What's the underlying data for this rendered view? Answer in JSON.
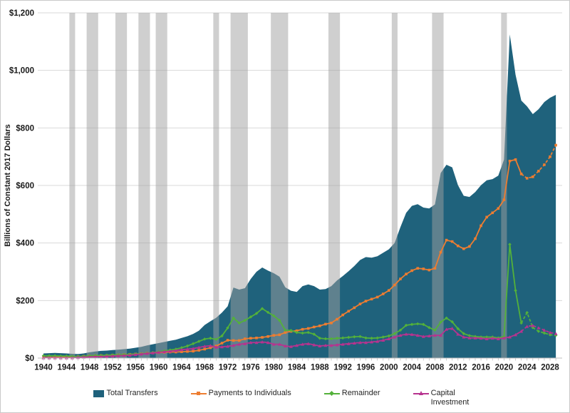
{
  "figure": {
    "ylabel": "Billions of Constant 2017 Dollars",
    "background_color": "#FFFFFF",
    "border_color": "#C9C9C9",
    "grid_color": "#D9D9D9",
    "axis_color": "#BFBFBF",
    "text_color": "#1A1A1A",
    "recession_band_color": "#A0A0A0",
    "recession_band_opacity": 0.5
  },
  "legend": [
    {
      "label": "Total Transfers",
      "type": "area",
      "marker": "none",
      "color": "#1F627C"
    },
    {
      "label": "Payments to Individuals",
      "type": "line",
      "marker": "square",
      "color": "#ED7D31"
    },
    {
      "label": "Remainder",
      "type": "line",
      "marker": "diamond",
      "color": "#53B13A"
    },
    {
      "label": "Capital Investment",
      "type": "line",
      "marker": "triangle",
      "color": "#B7338F"
    }
  ],
  "chart_data": {
    "type": "area+line",
    "title": "",
    "xlabel": "",
    "ylabel": "Billions of Constant 2017 Dollars",
    "year_start": 1940,
    "year_end": 2029,
    "ylim": [
      0,
      1200
    ],
    "grid": "horizontal",
    "legend_position": "bottom",
    "projection_start_year": 2023,
    "x_tick_years": [
      1940,
      1944,
      1948,
      1952,
      1956,
      1960,
      1964,
      1968,
      1972,
      1976,
      1980,
      1984,
      1988,
      1992,
      1996,
      2000,
      2004,
      2008,
      2012,
      2016,
      2020,
      2024,
      2028
    ],
    "y_ticks": [
      {
        "value": 0,
        "label": "$0"
      },
      {
        "value": 200,
        "label": "$200"
      },
      {
        "value": 400,
        "label": "$400"
      },
      {
        "value": 600,
        "label": "$600"
      },
      {
        "value": 800,
        "label": "$800"
      },
      {
        "value": 1000,
        "label": "$1,000"
      },
      {
        "value": 1200,
        "label": "$1,200"
      }
    ],
    "recessions": [
      [
        1945,
        1945
      ],
      [
        1948,
        1949
      ],
      [
        1953,
        1954
      ],
      [
        1957,
        1958
      ],
      [
        1960,
        1961
      ],
      [
        1970,
        1970
      ],
      [
        1973,
        1975
      ],
      [
        1980,
        1982
      ],
      [
        1990,
        1991
      ],
      [
        2001,
        2001
      ],
      [
        2008,
        2009
      ],
      [
        2020,
        2020
      ]
    ],
    "series": [
      {
        "name": "Total Transfers",
        "style": "area",
        "color": "#1F627C",
        "values": [
          16,
          17,
          18,
          17,
          16,
          15,
          14,
          16,
          20,
          23,
          25,
          26,
          28,
          29,
          31,
          33,
          36,
          39,
          44,
          48,
          52,
          56,
          60,
          64,
          70,
          76,
          84,
          95,
          115,
          128,
          140,
          158,
          180,
          245,
          238,
          243,
          275,
          300,
          315,
          304,
          295,
          283,
          246,
          234,
          230,
          250,
          256,
          250,
          238,
          240,
          250,
          270,
          285,
          302,
          320,
          341,
          351,
          349,
          354,
          366,
          378,
          400,
          455,
          505,
          529,
          535,
          523,
          520,
          534,
          643,
          672,
          663,
          601,
          564,
          560,
          577,
          601,
          618,
          622,
          634,
          690,
          1125,
          985,
          895,
          875,
          848,
          865,
          890,
          905,
          915
        ]
      },
      {
        "name": "Payments to Individuals",
        "style": "line",
        "marker": "square",
        "color": "#ED7D31",
        "values": [
          2,
          2,
          3,
          3,
          3,
          4,
          5,
          6,
          7,
          8,
          9,
          9,
          10,
          11,
          12,
          13,
          14,
          15,
          17,
          18,
          19,
          20,
          21,
          21,
          22,
          23,
          24,
          27,
          31,
          36,
          42,
          52,
          62,
          61,
          61,
          67,
          69,
          70,
          72,
          75,
          79,
          81,
          89,
          93,
          95,
          100,
          103,
          108,
          112,
          118,
          122,
          135,
          150,
          163,
          175,
          188,
          198,
          205,
          212,
          223,
          235,
          254,
          275,
          292,
          304,
          312,
          310,
          306,
          312,
          368,
          410,
          405,
          390,
          380,
          388,
          415,
          460,
          490,
          505,
          520,
          550,
          685,
          690,
          640,
          625,
          630,
          650,
          672,
          700,
          740
        ]
      },
      {
        "name": "Remainder",
        "style": "line",
        "marker": "diamond",
        "color": "#53B13A",
        "values": [
          8,
          8,
          8,
          7,
          7,
          6,
          5,
          6,
          8,
          9,
          9,
          10,
          11,
          11,
          12,
          13,
          14,
          15,
          17,
          19,
          22,
          25,
          28,
          31,
          36,
          42,
          50,
          58,
          66,
          69,
          65,
          77,
          105,
          139,
          122,
          131,
          143,
          155,
          172,
          159,
          147,
          131,
          97,
          96,
          89,
          87,
          89,
          83,
          69,
          67,
          67,
          69,
          70,
          72,
          74,
          75,
          70,
          69,
          70,
          73,
          77,
          85,
          97,
          114,
          117,
          119,
          117,
          106,
          97,
          125,
          139,
          126,
          102,
          85,
          78,
          75,
          73,
          73,
          73,
          70,
          75,
          395,
          235,
          122,
          158,
          106,
          93,
          87,
          81,
          79
        ]
      },
      {
        "name": "Capital Investment",
        "style": "line",
        "marker": "triangle",
        "color": "#B7338F",
        "values": [
          1,
          1,
          1,
          1,
          1,
          1,
          2,
          3,
          4,
          5,
          5,
          6,
          7,
          8,
          9,
          10,
          12,
          14,
          16,
          18,
          20,
          22,
          24,
          26,
          29,
          31,
          33,
          37,
          41,
          43,
          38,
          39,
          41,
          44,
          48,
          50,
          54,
          54,
          56,
          54,
          48,
          48,
          42,
          40,
          44,
          48,
          50,
          46,
          42,
          44,
          44,
          46,
          48,
          50,
          52,
          54,
          54,
          56,
          58,
          62,
          67,
          73,
          79,
          83,
          82,
          79,
          75,
          77,
          79,
          79,
          100,
          103,
          83,
          73,
          70,
          70,
          69,
          67,
          69,
          67,
          70,
          73,
          81,
          93,
          110,
          113,
          105,
          97,
          89,
          85
        ]
      }
    ]
  }
}
